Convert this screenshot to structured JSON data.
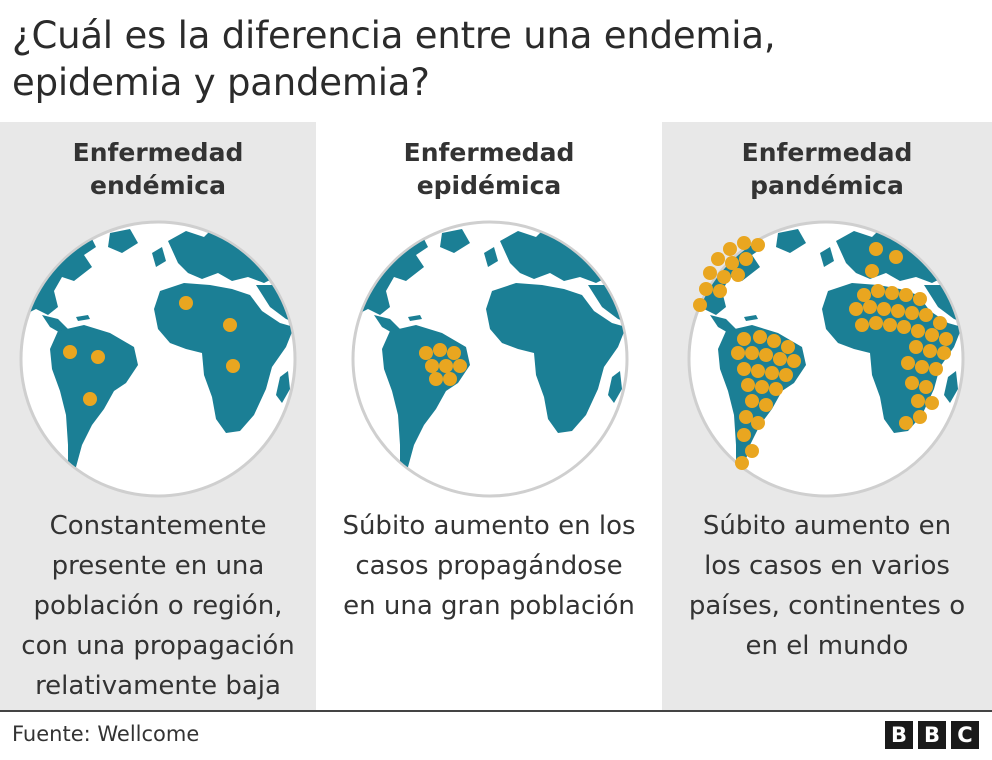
{
  "title": {
    "line1": "¿Cuál es la diferencia entre una endemia,",
    "line2": "epidemia y pandemia?"
  },
  "columns": [
    {
      "heading": [
        "Enfermedad",
        "endémica"
      ],
      "description": [
        "Constantemente",
        "presente en una",
        "población o región,",
        "con una propagación",
        "relativamente baja"
      ]
    },
    {
      "heading": [
        "Enfermedad",
        "epidémica"
      ],
      "description": [
        "Súbito aumento en los",
        "casos propagándose",
        "en una gran población"
      ]
    },
    {
      "heading": [
        "Enfermedad",
        "pandémica"
      ],
      "description": [
        "Súbito aumento en",
        "los casos en varios",
        "países, continentes o",
        "en el mundo"
      ]
    }
  ],
  "source": "Fuente: Wellcome",
  "logo": [
    "B",
    "B",
    "C"
  ],
  "colors": {
    "land": "#1b7f95",
    "ocean": "#ffffff",
    "dot": "#e9a620",
    "panel": "#e8e8e8"
  }
}
